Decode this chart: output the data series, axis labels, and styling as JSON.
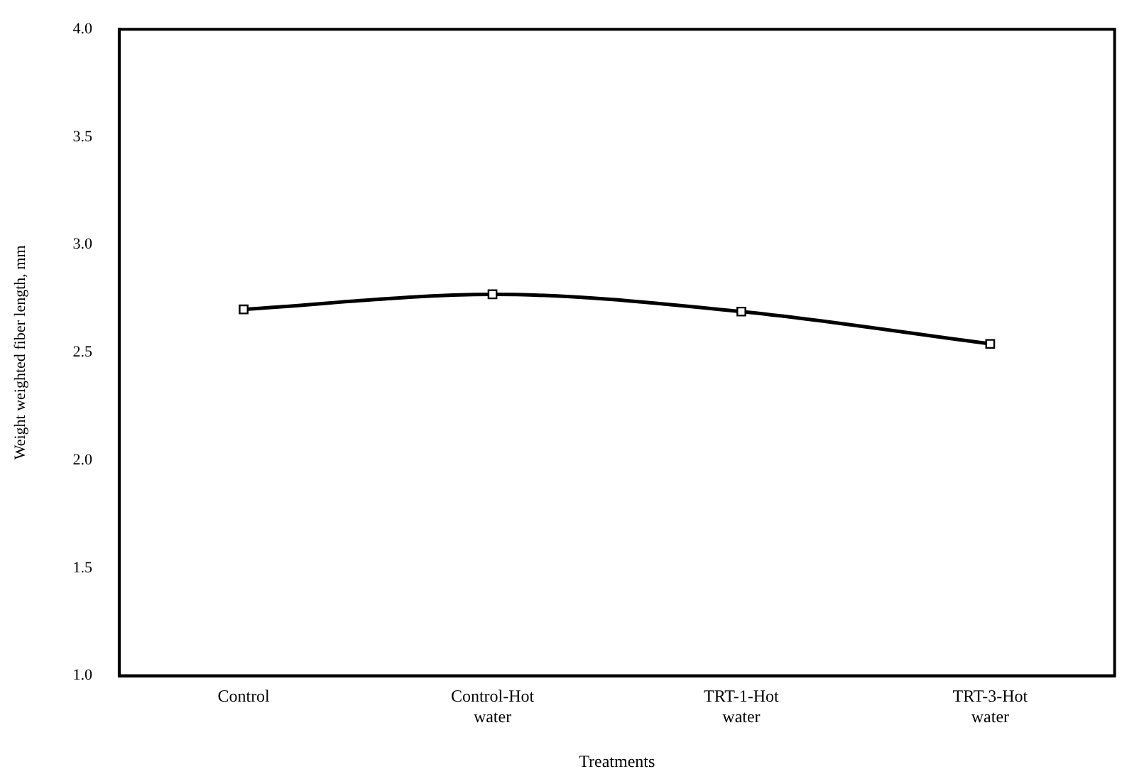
{
  "chart_data": {
    "type": "line",
    "xlabel": "Treatments",
    "ylabel": "Weight weighted fiber length, mm",
    "categories": [
      "Control",
      "Control-Hot water",
      "TRT-1-Hot water",
      "TRT-3-Hot water"
    ],
    "series": [
      {
        "color": "#000000",
        "values": [
          2.7,
          2.77,
          2.69,
          2.54
        ]
      }
    ],
    "ylim": [
      1,
      4
    ],
    "yticks": [
      {
        "value": 1,
        "label": "1.0"
      },
      {
        "value": 1.5,
        "label": "1.5"
      },
      {
        "value": 2,
        "label": "2.0"
      },
      {
        "value": 2.5,
        "label": "2.5"
      },
      {
        "value": 3,
        "label": "3.0"
      },
      {
        "value": 3.5,
        "label": "3.5"
      },
      {
        "value": 4,
        "label": "4.0"
      }
    ],
    "grid": false,
    "legend": false,
    "marker": "square",
    "line_style": "solid"
  }
}
